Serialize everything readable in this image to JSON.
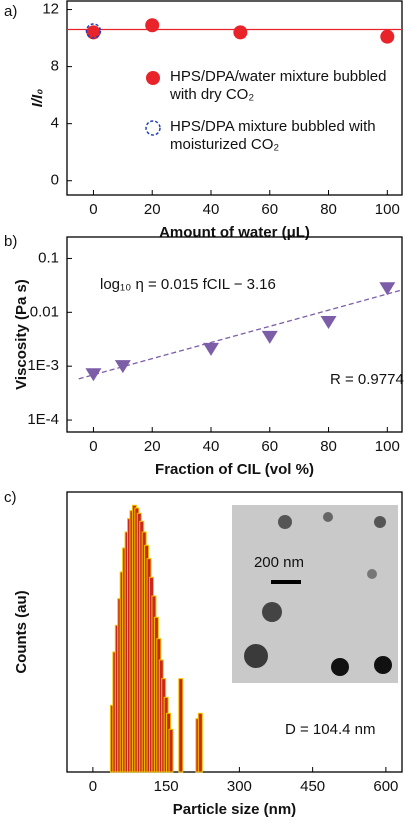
{
  "chart_data": [
    {
      "type": "scatter",
      "panel_label": "a)",
      "x_label": "Amount of water (μL)",
      "y_label": "I/I₀",
      "xlim": [
        -9,
        105
      ],
      "xticks": [
        0,
        20,
        40,
        60,
        80,
        100
      ],
      "ylim": [
        -1,
        12.6
      ],
      "yticks": [
        0,
        4,
        8,
        12
      ],
      "reference_line": 10.6,
      "reference_color": "#e8232a",
      "series": [
        {
          "name": "HPS/DPA/water mixture bubbled with dry CO₂",
          "color": "#e8232a",
          "marker": "filled",
          "x": [
            0,
            20,
            50,
            100
          ],
          "values": [
            10.4,
            10.9,
            10.4,
            10.1
          ]
        },
        {
          "name": "HPS/DPA mixture bubbled with moisturized CO₂",
          "color": "#1f3fbf",
          "marker": "open",
          "x": [
            0
          ],
          "values": [
            10.5
          ]
        }
      ]
    },
    {
      "type": "scatter",
      "panel_label": "b)",
      "log_y": true,
      "x_label": "Fraction of CIL (vol %)",
      "y_label": "Viscosity (Pa s)",
      "xlim": [
        -9,
        105
      ],
      "xticks": [
        0,
        20,
        40,
        60,
        80,
        100
      ],
      "ylim": [
        6e-05,
        0.25
      ],
      "yticks": [
        {
          "value": 0.0001,
          "label": "1E-4"
        },
        {
          "value": 0.001,
          "label": "1E-3"
        },
        0.01,
        0.1
      ],
      "equation": "log₁₀ η = 0.015 fCIL − 3.16",
      "r_label": "R = 0.9774",
      "color": "#7b5ea7",
      "marker": "triangle-down",
      "x": [
        0,
        10,
        40,
        60,
        80,
        100
      ],
      "values": [
        0.00071,
        0.001,
        0.0021,
        0.0035,
        0.0066,
        0.028
      ],
      "fit_line": {
        "x": [
          -5,
          105
        ],
        "values": [
          0.000582,
          0.026
        ]
      }
    },
    {
      "type": "bar",
      "panel_label": "c)",
      "x_label": "Particle size (nm)",
      "y_label": "Counts (au)",
      "xlim": [
        -53,
        633
      ],
      "xticks": [
        0,
        150,
        300,
        450,
        600
      ],
      "ylim": [
        0,
        105
      ],
      "annotation": "D = 104.4 nm",
      "inset_scale_label": "200 nm",
      "color": "#c8281e",
      "edge_color": "#f2c200",
      "x": [
        40,
        45,
        50,
        55,
        60,
        65,
        70,
        75,
        80,
        85,
        90,
        95,
        100,
        105,
        110,
        115,
        120,
        125,
        130,
        135,
        140,
        145,
        150,
        155,
        160,
        180,
        215,
        220
      ],
      "values": [
        25,
        45,
        55,
        65,
        75,
        84,
        90,
        95,
        98,
        100,
        99,
        97,
        94,
        90,
        85,
        80,
        73,
        66,
        58,
        50,
        42,
        35,
        28,
        22,
        16,
        35,
        20,
        22
      ]
    }
  ]
}
